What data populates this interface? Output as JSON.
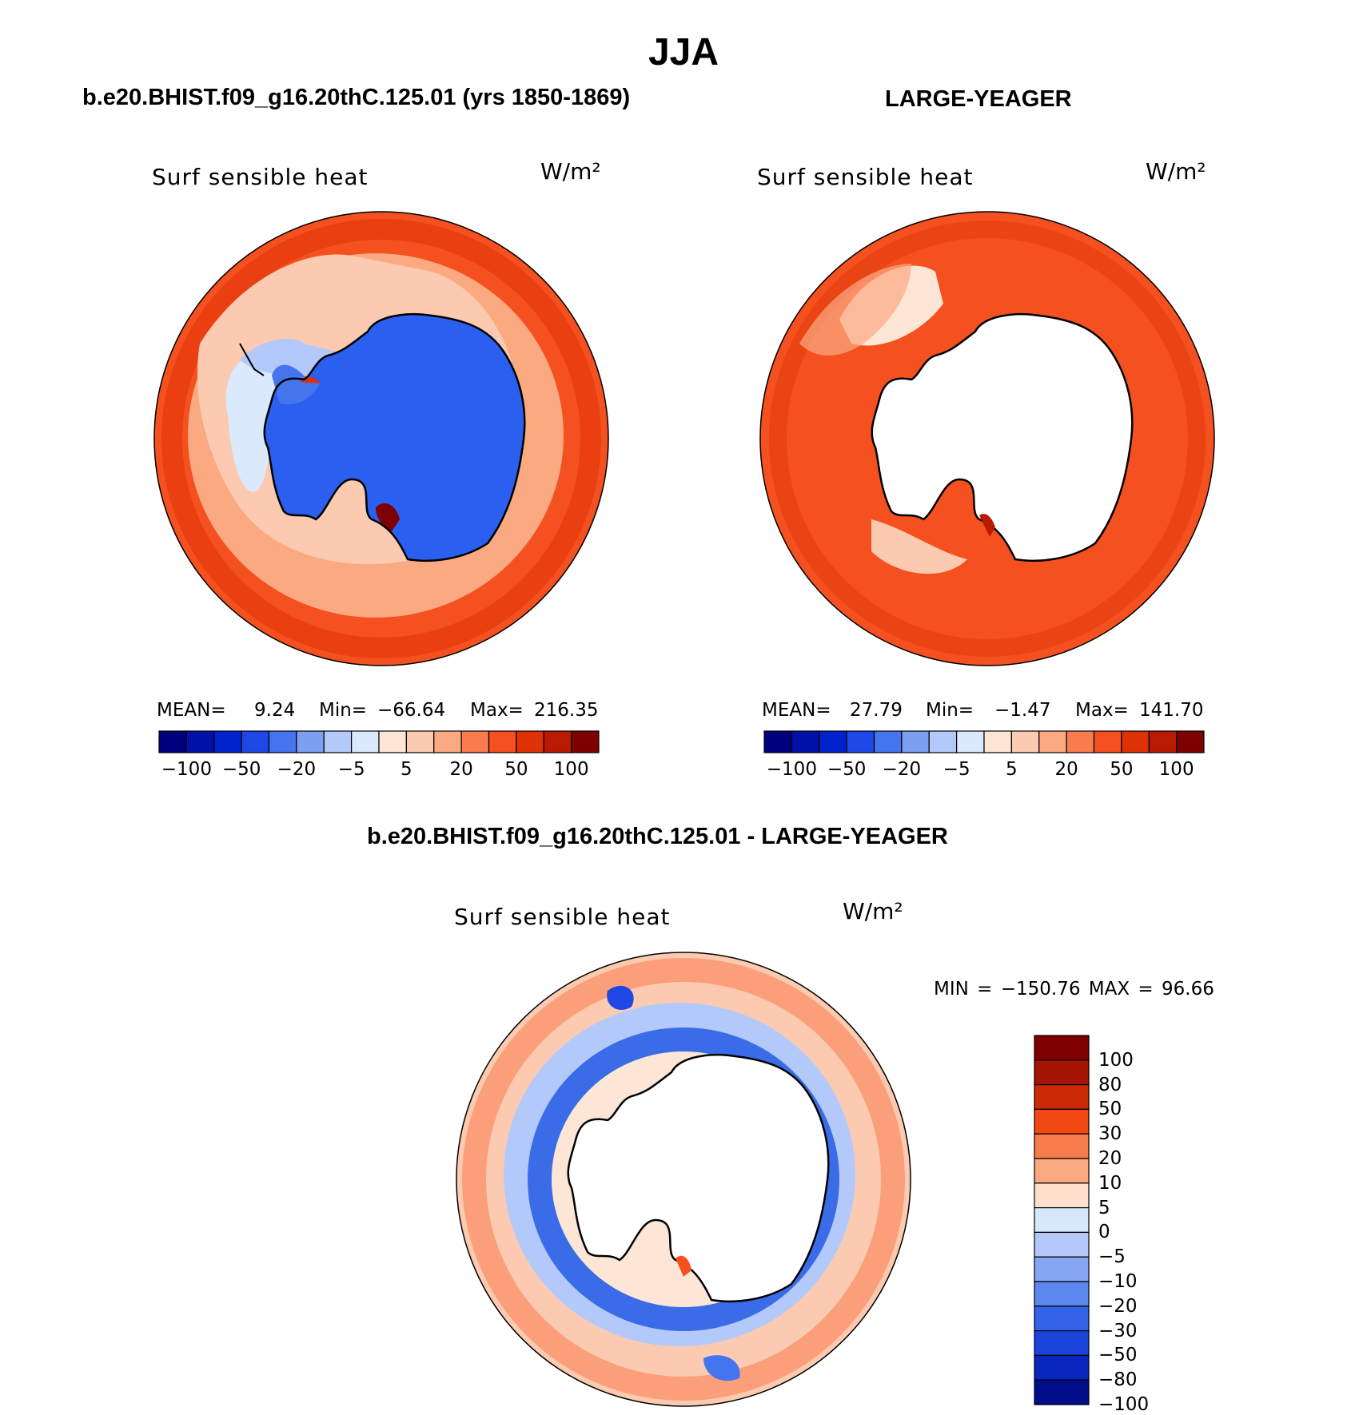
{
  "title": "JJA",
  "panels": [
    {
      "case": "b.e20.BHIST.f09_g16.20thC.125.01 (yrs 1850-1869)",
      "field": "Surf sensible heat",
      "units": "W/m²",
      "stats": {
        "mean_label": "MEAN=",
        "mean": "9.24",
        "min_label": "Min=",
        "min": "−66.64",
        "max_label": "Max=",
        "max": "216.35"
      }
    },
    {
      "case": "LARGE-YEAGER",
      "field": "Surf sensible heat",
      "units": "W/m²",
      "stats": {
        "mean_label": "MEAN=",
        "mean": "27.79",
        "min_label": "Min=",
        "min": "−1.47",
        "max_label": "Max=",
        "max": "141.70"
      }
    },
    {
      "case": "b.e20.BHIST.f09_g16.20thC.125.01 - LARGE-YEAGER",
      "field": "Surf sensible heat",
      "units": "W/m²",
      "minmax": "MIN = −150.76 MAX =   96.66"
    }
  ],
  "colorbar_horizontal": {
    "colors": [
      "#00007f",
      "#0011a7",
      "#0022cc",
      "#1f47e6",
      "#4475ee",
      "#7d9ff2",
      "#b3c9f9",
      "#dbe9fc",
      "#fde6d6",
      "#fccab0",
      "#fba981",
      "#f97c4e",
      "#f5501f",
      "#de3206",
      "#b81a02",
      "#7f0000"
    ],
    "labels": [
      "−100",
      "−50",
      "−20",
      "−5",
      "5",
      "20",
      "50",
      "100"
    ]
  },
  "colorbar_vertical": {
    "colors": [
      "#7f0000",
      "#a51402",
      "#cc2a04",
      "#f04a12",
      "#f87b4b",
      "#faa880",
      "#fde0cc",
      "#d6e8fb",
      "#b3c8f8",
      "#86a6f2",
      "#5b86ee",
      "#3363e8",
      "#1b44dd",
      "#0826be",
      "#000d8a"
    ],
    "labels": [
      "100",
      "80",
      "50",
      "30",
      "20",
      "10",
      "5",
      "0",
      "−5",
      "−10",
      "−20",
      "−30",
      "−50",
      "−80",
      "−100"
    ]
  },
  "map_colors": {
    "ocean_warm": "#f5501f",
    "ocean_hot": "#de3206",
    "ocean_peach": "#fccab0",
    "ice_blue": "#2a5ff0",
    "diff_blue": "#3a6ce8",
    "diff_lightblue": "#b3c9f9",
    "diff_peach": "#fde6d6",
    "land_white": "#ffffff"
  }
}
